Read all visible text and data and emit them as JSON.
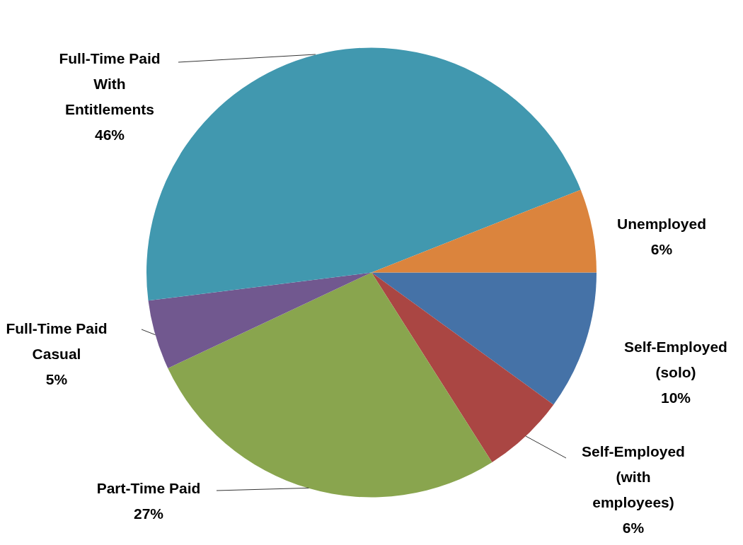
{
  "chart_data": {
    "type": "pie",
    "categories": [
      "Self-Employed\n(solo)",
      "Self-Employed\n(with\nemployees)",
      "Part-Time Paid",
      "Full-Time Paid\nCasual",
      "Full-Time Paid\nWith\nEntitlements",
      "Unemployed"
    ],
    "values": [
      10,
      6,
      27,
      5,
      46,
      6
    ],
    "value_labels": [
      "10%",
      "6%",
      "27%",
      "5%",
      "46%",
      "6%"
    ],
    "colors": [
      "#4572a7",
      "#aa4643",
      "#89a54e",
      "#71588f",
      "#4198af",
      "#db843d"
    ]
  }
}
